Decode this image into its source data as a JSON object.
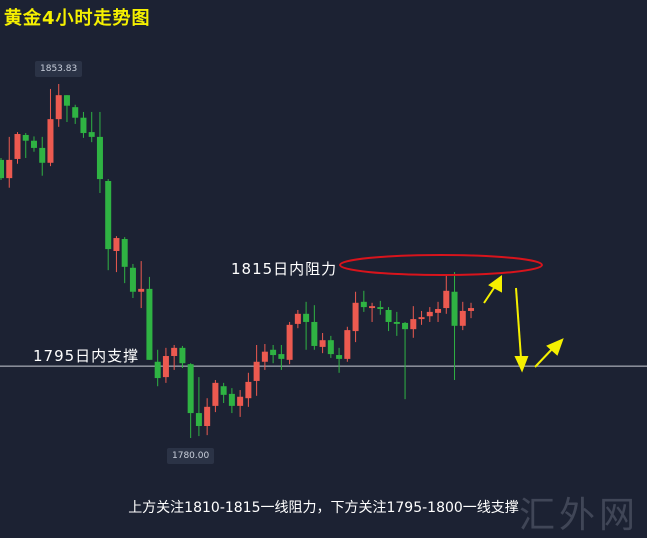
{
  "title": "黄金4小时走势图",
  "colors": {
    "background": "#1c2233",
    "up": "#ec5a50",
    "down": "#2fb343",
    "title": "#f5f000",
    "ellipse": "#d8141c",
    "arrow": "#f5f000",
    "support_line": "#c8ccd4"
  },
  "annotations": {
    "resistance_label": "1815日内阻力",
    "support_label": "1795日内支撑",
    "high_label": "1853.83",
    "low_label": "1780.00",
    "caption": "上方关注1810-1815一线阻力，下方关注1795-1800一线支撑",
    "watermark": "汇外网"
  },
  "chart_data": {
    "type": "candlestick",
    "title": "黄金4小时走势图",
    "ylim": [
      1780,
      1853.83
    ],
    "support_level": 1795,
    "resistance_level": 1815,
    "grid": false,
    "candles": [
      [
        1838.0,
        1838.4,
        1833.8,
        1834.2
      ],
      [
        1834.2,
        1842.8,
        1832.2,
        1838.0
      ],
      [
        1838.2,
        1843.8,
        1837.2,
        1843.4
      ],
      [
        1843.2,
        1843.6,
        1838.4,
        1842.0
      ],
      [
        1842.0,
        1842.9,
        1839.7,
        1840.5
      ],
      [
        1840.5,
        1842.8,
        1834.7,
        1837.4
      ],
      [
        1837.4,
        1852.8,
        1836.7,
        1846.5
      ],
      [
        1846.5,
        1853.83,
        1844.9,
        1851.5
      ],
      [
        1851.5,
        1851.5,
        1845.9,
        1849.3
      ],
      [
        1849.0,
        1849.5,
        1845.5,
        1846.8
      ],
      [
        1846.8,
        1848.0,
        1842.6,
        1843.6
      ],
      [
        1843.8,
        1848.0,
        1841.7,
        1842.8
      ],
      [
        1842.8,
        1848.0,
        1831.1,
        1834.0
      ],
      [
        1833.6,
        1834.0,
        1815.0,
        1819.4
      ],
      [
        1819.0,
        1822.1,
        1814.6,
        1821.7
      ],
      [
        1821.5,
        1821.9,
        1812.3,
        1815.7
      ],
      [
        1815.5,
        1816.3,
        1809.2,
        1810.5
      ],
      [
        1810.5,
        1816.9,
        1807.1,
        1811.1
      ],
      [
        1811.1,
        1813.6,
        1796.3,
        1796.3
      ],
      [
        1795.9,
        1798.4,
        1790.8,
        1792.5
      ],
      [
        1792.7,
        1798.8,
        1791.5,
        1797.1
      ],
      [
        1797.1,
        1799.4,
        1794.2,
        1798.8
      ],
      [
        1798.8,
        1799.2,
        1794.6,
        1795.6
      ],
      [
        1795.4,
        1795.6,
        1780.0,
        1785.2
      ],
      [
        1785.2,
        1792.7,
        1780.4,
        1782.5
      ],
      [
        1782.5,
        1788.3,
        1780.6,
        1786.5
      ],
      [
        1786.7,
        1792.1,
        1785.4,
        1791.5
      ],
      [
        1790.8,
        1791.5,
        1787.3,
        1789.0
      ],
      [
        1789.2,
        1790.4,
        1785.2,
        1786.7
      ],
      [
        1786.7,
        1790.0,
        1784.4,
        1788.6
      ],
      [
        1788.3,
        1793.6,
        1786.5,
        1791.7
      ],
      [
        1791.9,
        1799.4,
        1788.8,
        1795.9
      ],
      [
        1795.9,
        1799.6,
        1794.2,
        1798.0
      ],
      [
        1798.4,
        1799.4,
        1795.6,
        1797.3
      ],
      [
        1797.5,
        1799.4,
        1794.2,
        1796.5
      ],
      [
        1796.3,
        1804.2,
        1795.4,
        1803.6
      ],
      [
        1803.8,
        1806.7,
        1802.9,
        1805.9
      ],
      [
        1805.9,
        1808.4,
        1798.4,
        1804.2
      ],
      [
        1804.2,
        1807.7,
        1798.4,
        1799.2
      ],
      [
        1799.0,
        1801.9,
        1797.7,
        1800.4
      ],
      [
        1800.4,
        1801.3,
        1796.7,
        1797.5
      ],
      [
        1797.3,
        1798.8,
        1793.6,
        1796.5
      ],
      [
        1796.5,
        1803.2,
        1795.9,
        1802.5
      ],
      [
        1802.3,
        1810.5,
        1800.0,
        1808.2
      ],
      [
        1808.4,
        1810.7,
        1806.3,
        1807.3
      ],
      [
        1807.1,
        1808.2,
        1804.2,
        1807.5
      ],
      [
        1807.3,
        1808.6,
        1805.7,
        1806.9
      ],
      [
        1806.7,
        1807.3,
        1802.3,
        1804.2
      ],
      [
        1804.2,
        1806.3,
        1801.3,
        1803.8
      ],
      [
        1804.0,
        1804.2,
        1788.1,
        1802.7
      ],
      [
        1802.7,
        1807.5,
        1800.9,
        1804.8
      ],
      [
        1804.8,
        1806.5,
        1803.6,
        1805.2
      ],
      [
        1805.4,
        1807.3,
        1804.2,
        1806.3
      ],
      [
        1806.1,
        1808.4,
        1804.2,
        1806.9
      ],
      [
        1807.1,
        1814.2,
        1805.9,
        1810.7
      ],
      [
        1810.5,
        1814.6,
        1792.1,
        1803.4
      ],
      [
        1803.4,
        1808.4,
        1802.5,
        1806.5
      ],
      [
        1806.5,
        1808.2,
        1805.0,
        1807.1
      ]
    ]
  }
}
